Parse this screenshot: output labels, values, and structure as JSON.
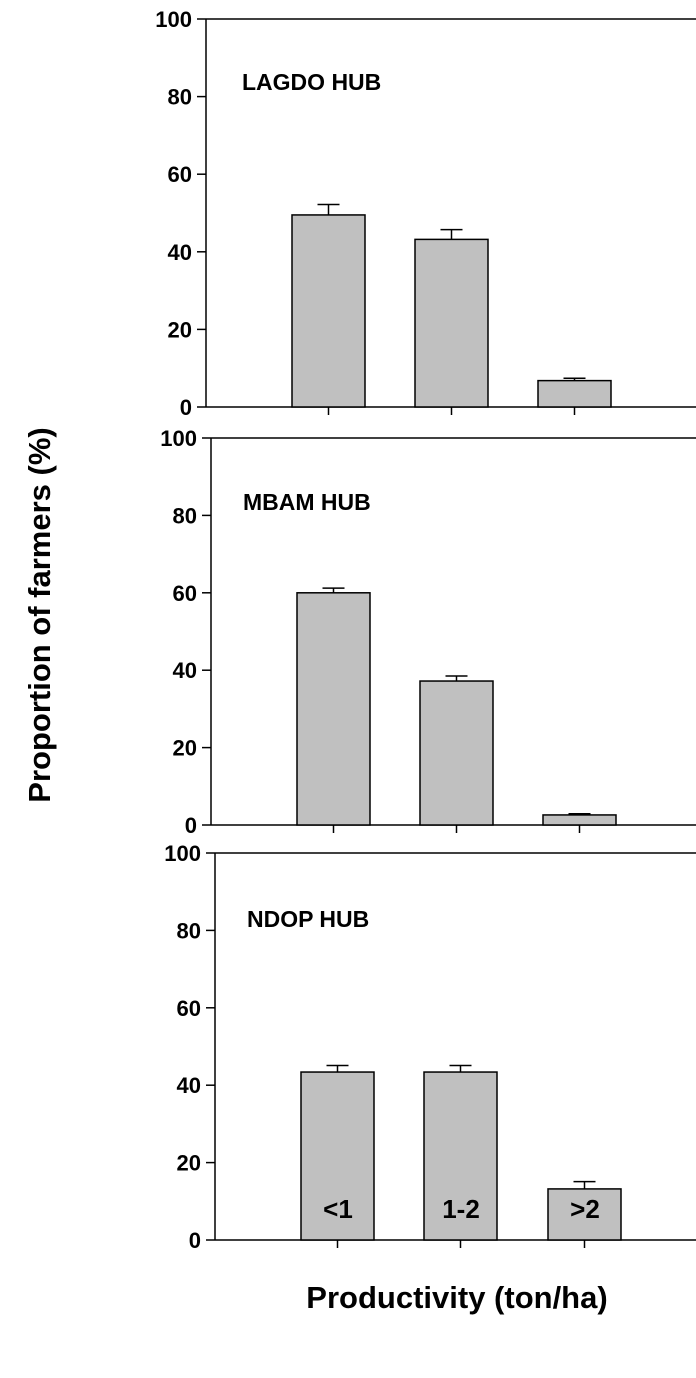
{
  "chart_data": [
    {
      "type": "bar",
      "title": "LAGDO HUB",
      "categories": [
        "<1",
        "1-2",
        ">2"
      ],
      "values": [
        49.5,
        43.2,
        6.8
      ],
      "errors": [
        2.7,
        2.5,
        0.6
      ],
      "ylim": [
        0,
        100
      ],
      "yticks": [
        "0",
        "20",
        "40",
        "60",
        "80",
        "100"
      ]
    },
    {
      "type": "bar",
      "title": "MBAM HUB",
      "categories": [
        "<1",
        "1-2",
        ">2"
      ],
      "values": [
        60,
        37.2,
        2.6
      ],
      "errors": [
        1.2,
        1.3,
        0.3
      ],
      "ylim": [
        0,
        100
      ],
      "yticks": [
        "0",
        "20",
        "40",
        "60",
        "80",
        "100"
      ]
    },
    {
      "type": "bar",
      "title": "NDOP HUB",
      "categories": [
        "<1",
        "1-2",
        ">2"
      ],
      "values": [
        43.4,
        43.4,
        13.2
      ],
      "errors": [
        1.7,
        1.7,
        1.9
      ],
      "ylim": [
        0,
        100
      ],
      "yticks": [
        "0",
        "20",
        "40",
        "60",
        "80",
        "100"
      ]
    }
  ],
  "axes": {
    "ylabel": "Proportion of farmers (%)",
    "xlabel": "Productivity (ton/ha)",
    "x_tick_labels": [
      "<1",
      "1-2",
      ">2"
    ]
  },
  "colors": {
    "bar_fill": "#c0c0c0",
    "stroke": "#000000"
  }
}
